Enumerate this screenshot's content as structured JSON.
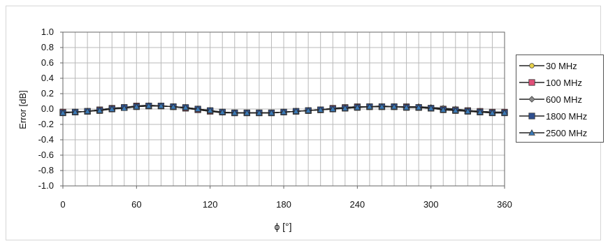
{
  "chart_data": {
    "type": "line",
    "xlabel": "ϕ [°]",
    "ylabel": "Error [dB]",
    "xlim": [
      0,
      360
    ],
    "ylim": [
      -1.0,
      1.0
    ],
    "x_ticks": [
      0,
      60,
      120,
      180,
      240,
      300,
      360
    ],
    "y_ticks": [
      1.0,
      0.8,
      0.6,
      0.4,
      0.2,
      0.0,
      -0.2,
      -0.4,
      -0.6,
      -0.8,
      -1.0
    ],
    "y_tick_labels": [
      "1.0",
      "0.8",
      "0.6",
      "0.4",
      "0.2",
      "0.0",
      "-0.2",
      "-0.4",
      "-0.6",
      "-0.8",
      "-1.0"
    ],
    "grid": true,
    "legend_position": "right",
    "x": [
      0,
      10,
      20,
      30,
      40,
      50,
      60,
      70,
      80,
      90,
      100,
      110,
      120,
      130,
      140,
      150,
      160,
      170,
      180,
      190,
      200,
      210,
      220,
      230,
      240,
      250,
      260,
      270,
      280,
      290,
      300,
      310,
      320,
      330,
      340,
      350,
      360
    ],
    "series": [
      {
        "name": "30 MHz",
        "color": "#e8d24a",
        "marker": "circle",
        "values": [
          -0.04,
          -0.04,
          -0.03,
          -0.01,
          0.01,
          0.02,
          0.04,
          0.05,
          0.04,
          0.03,
          0.01,
          -0.01,
          -0.03,
          -0.05,
          -0.05,
          -0.05,
          -0.05,
          -0.05,
          -0.04,
          -0.03,
          -0.02,
          -0.01,
          0.01,
          0.02,
          0.03,
          0.03,
          0.04,
          0.03,
          0.03,
          0.03,
          0.02,
          0.01,
          -0.01,
          -0.02,
          -0.03,
          -0.04,
          -0.04
        ]
      },
      {
        "name": "100 MHz",
        "color": "#e05078",
        "marker": "square",
        "values": [
          -0.04,
          -0.04,
          -0.03,
          -0.01,
          0.01,
          0.02,
          0.04,
          0.04,
          0.04,
          0.03,
          0.01,
          -0.01,
          -0.03,
          -0.04,
          -0.05,
          -0.05,
          -0.05,
          -0.05,
          -0.04,
          -0.03,
          -0.02,
          -0.01,
          0.01,
          0.02,
          0.03,
          0.03,
          0.03,
          0.03,
          0.03,
          0.02,
          0.01,
          0.0,
          -0.01,
          -0.02,
          -0.03,
          -0.04,
          -0.04
        ]
      },
      {
        "name": "600 MHz",
        "color": "#8a8a8a",
        "marker": "diamond",
        "values": [
          -0.05,
          -0.04,
          -0.03,
          -0.01,
          0.01,
          0.02,
          0.03,
          0.04,
          0.04,
          0.03,
          0.02,
          0.0,
          -0.02,
          -0.04,
          -0.05,
          -0.05,
          -0.05,
          -0.05,
          -0.04,
          -0.03,
          -0.02,
          -0.01,
          0.0,
          0.02,
          0.03,
          0.03,
          0.03,
          0.03,
          0.03,
          0.03,
          0.02,
          0.01,
          0.0,
          -0.02,
          -0.03,
          -0.04,
          -0.05
        ]
      },
      {
        "name": "1800 MHz",
        "color": "#2f4f8f",
        "marker": "square",
        "values": [
          -0.05,
          -0.04,
          -0.03,
          -0.02,
          0.0,
          0.02,
          0.03,
          0.04,
          0.04,
          0.03,
          0.02,
          0.0,
          -0.02,
          -0.04,
          -0.05,
          -0.05,
          -0.05,
          -0.05,
          -0.04,
          -0.03,
          -0.02,
          -0.01,
          0.0,
          0.01,
          0.02,
          0.03,
          0.03,
          0.03,
          0.02,
          0.02,
          0.01,
          -0.01,
          -0.02,
          -0.03,
          -0.04,
          -0.05,
          -0.05
        ]
      },
      {
        "name": "2500 MHz",
        "color": "#3a79b6",
        "marker": "triangle",
        "values": [
          -0.05,
          -0.04,
          -0.03,
          -0.02,
          0.0,
          0.01,
          0.03,
          0.04,
          0.04,
          0.03,
          0.02,
          0.0,
          -0.02,
          -0.04,
          -0.05,
          -0.05,
          -0.05,
          -0.05,
          -0.04,
          -0.03,
          -0.02,
          -0.01,
          0.0,
          0.01,
          0.02,
          0.03,
          0.03,
          0.03,
          0.02,
          0.02,
          0.01,
          -0.01,
          -0.02,
          -0.03,
          -0.04,
          -0.05,
          -0.05
        ]
      }
    ]
  }
}
